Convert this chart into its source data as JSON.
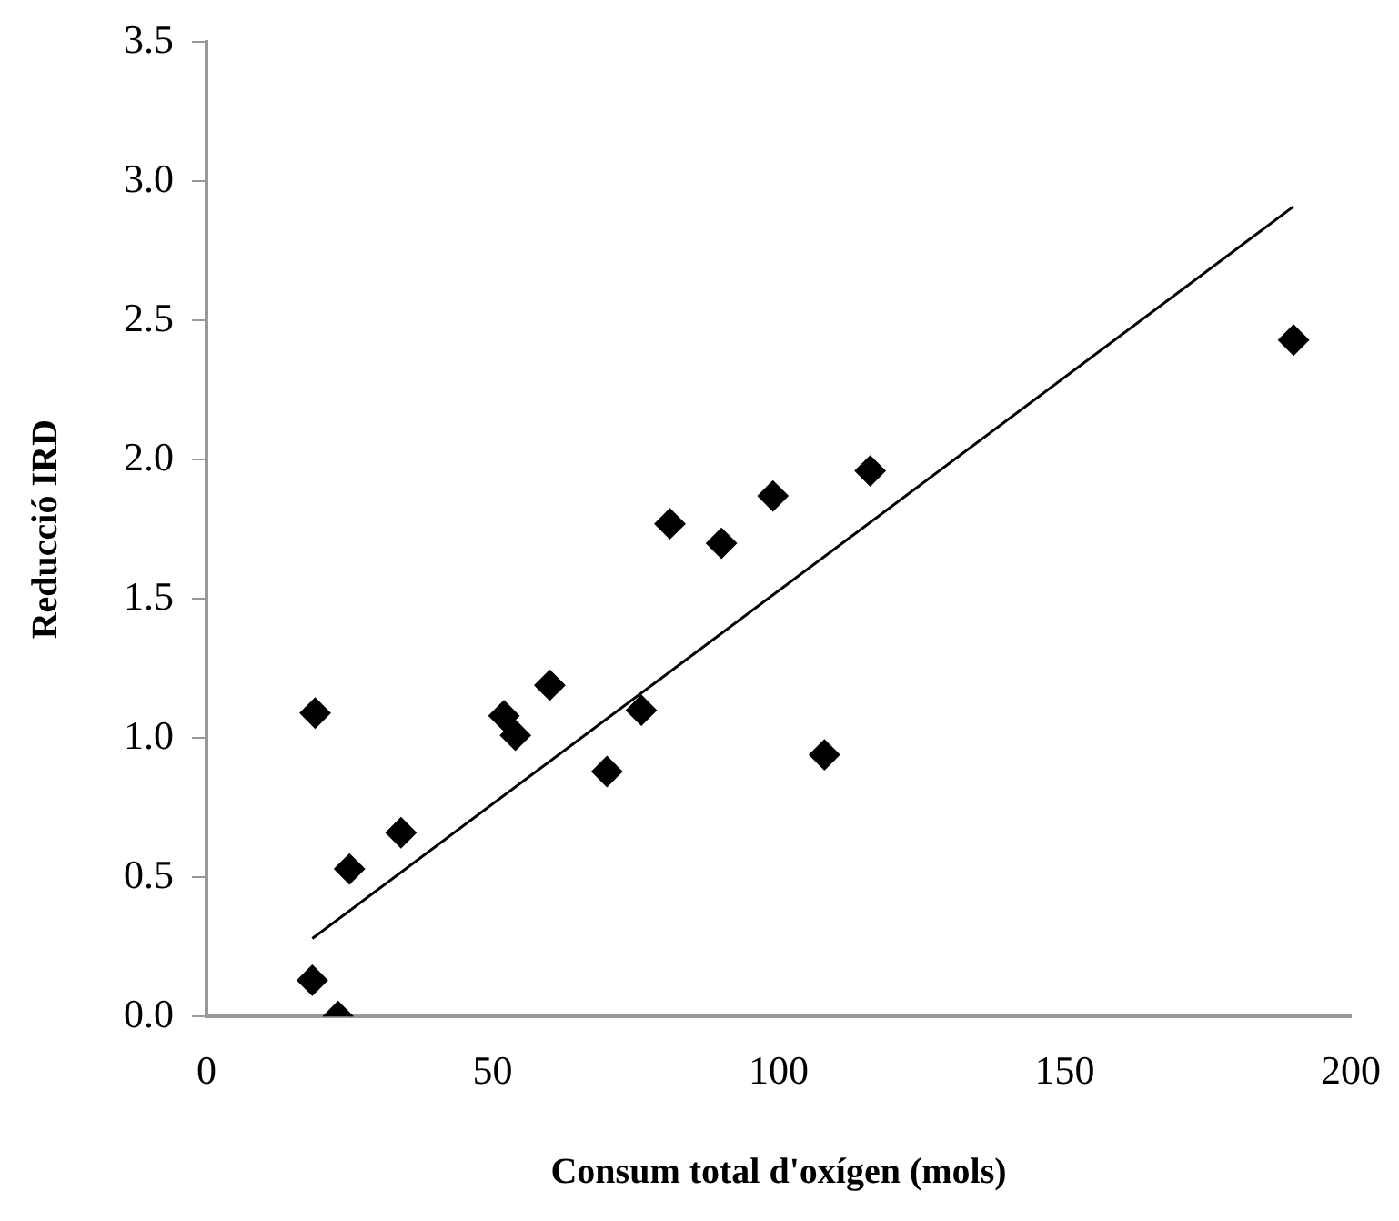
{
  "chart_data": {
    "type": "scatter",
    "xlabel": "Consum total d'oxígen (mols)",
    "ylabel": "Reducció IRD",
    "x": [
      18.5,
      19,
      23,
      25,
      34,
      52,
      54,
      60,
      70,
      76,
      81,
      90,
      99,
      108,
      116,
      190
    ],
    "series": [
      {
        "type": "scatter",
        "color": "#000000",
        "marker": "diamond",
        "values": [
          0.13,
          1.09,
          0.0,
          0.53,
          0.66,
          1.08,
          1.01,
          1.19,
          0.88,
          1.1,
          1.77,
          1.7,
          1.87,
          0.94,
          1.96,
          2.43
        ]
      },
      {
        "type": "line",
        "color": "#000000",
        "marker": "none",
        "x": [
          18.5,
          190
        ],
        "values": [
          0.28,
          2.91
        ]
      }
    ],
    "xlim": [
      0,
      200
    ],
    "xticks": [
      0,
      50,
      100,
      150,
      200
    ],
    "ylim": [
      0,
      3.5
    ],
    "yticks": [
      {
        "value": 0,
        "label": "0.0"
      },
      {
        "value": 0.5,
        "label": "0.5"
      },
      {
        "value": 1,
        "label": "1.0"
      },
      {
        "value": 1.5,
        "label": "1.5"
      },
      {
        "value": 2,
        "label": "2.0"
      },
      {
        "value": 2.5,
        "label": "2.5"
      },
      {
        "value": 3,
        "label": "3.0"
      },
      {
        "value": 3.5,
        "label": "3.5"
      }
    ],
    "grid": false,
    "legend": false
  }
}
